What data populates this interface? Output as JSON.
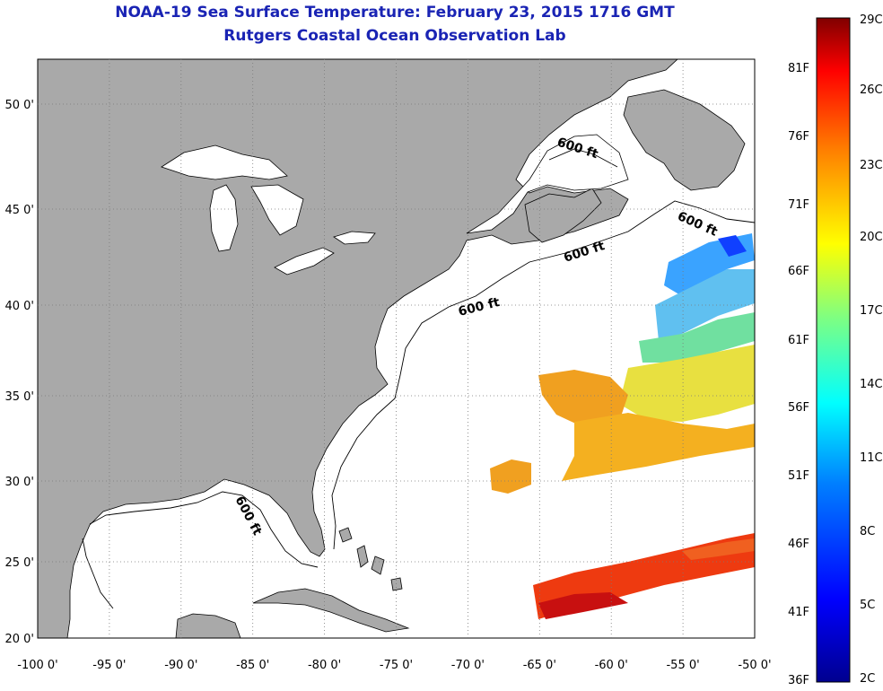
{
  "header": {
    "title": "NOAA-19 Sea Surface Temperature:  February 23, 2015 1716 GMT",
    "subtitle": "Rutgers Coastal Ocean Observation Lab"
  },
  "map": {
    "lon_ticks": [
      "-100 0'",
      "-95 0'",
      "-90 0'",
      "-85 0'",
      "-80 0'",
      "-75 0'",
      "-70 0'",
      "-65 0'",
      "-60 0'",
      "-55 0'",
      "-50 0'"
    ],
    "lat_ticks": [
      "50 0'",
      "45 0'",
      "40 0'",
      "35 0'",
      "30 0'",
      "25 0'",
      "20 0'"
    ],
    "contour_label": "600 ft",
    "colors": {
      "land": "#a9a9a9",
      "ocean": "#ffffff",
      "grid": "#7a7a7a"
    }
  },
  "colorbar": {
    "celsius_labels": [
      "29C",
      "26C",
      "23C",
      "20C",
      "17C",
      "14C",
      "11C",
      "8C",
      "5C",
      "2C"
    ],
    "fahrenheit_labels": [
      "81F",
      "76F",
      "71F",
      "66F",
      "61F",
      "56F",
      "51F",
      "46F",
      "41F",
      "36F"
    ],
    "colors": [
      "#00008f",
      "#0000ff",
      "#0080ff",
      "#00ffff",
      "#80ff80",
      "#ffff00",
      "#ff8000",
      "#ff0000",
      "#800000"
    ]
  }
}
